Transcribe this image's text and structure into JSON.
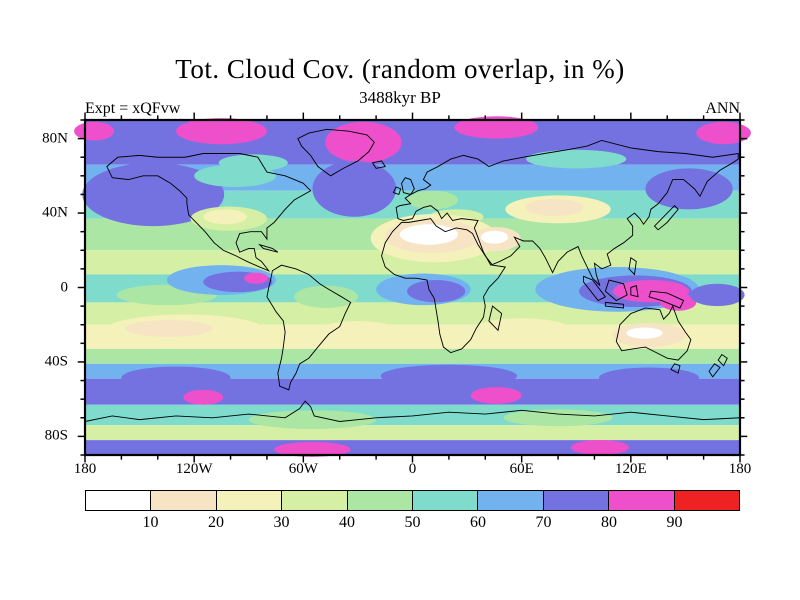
{
  "chart_data": {
    "type": "heatmap",
    "title": "Tot. Cloud Cov. (random overlap, in %)",
    "subtitle": "3488kyr BP",
    "top_left_label": "Expt = xQFvw",
    "top_right_label": "ANN",
    "x_axis": {
      "tick_labels": [
        "180",
        "120W",
        "60W",
        "0",
        "60E",
        "120E",
        "180"
      ],
      "range_deg_lon": [
        -180,
        180
      ]
    },
    "y_axis": {
      "tick_labels": [
        "80N",
        "40N",
        "0",
        "40S",
        "80S"
      ],
      "range_deg_lat": [
        90,
        -90
      ]
    },
    "colorbar": {
      "boundary_labels": [
        "10",
        "20",
        "30",
        "40",
        "50",
        "60",
        "70",
        "80",
        "90"
      ],
      "colors": [
        "#ffffff",
        "#f6e4c4",
        "#f4f1bb",
        "#d5efa5",
        "#abe6a5",
        "#7fdccc",
        "#72b2ee",
        "#7472e0",
        "#ee50cc",
        "#ee2222"
      ],
      "value_range": [
        0,
        100
      ],
      "interval": 10,
      "units": "%"
    },
    "legend_position": "bottom",
    "grid": false,
    "approx_zonal_profile": [
      {
        "lat_band": "90N-70N",
        "cloud_pct": 75
      },
      {
        "lat_band": "70N-55N",
        "cloud_pct": 65
      },
      {
        "lat_band": "55N-35N",
        "cloud_pct": 50
      },
      {
        "lat_band": "35N-20N",
        "cloud_pct": 30
      },
      {
        "lat_band": "20N-5N",
        "cloud_pct": 45
      },
      {
        "lat_band": "5N-5S",
        "cloud_pct": 60
      },
      {
        "lat_band": "5S-20S",
        "cloud_pct": 40
      },
      {
        "lat_band": "20S-35S",
        "cloud_pct": 25
      },
      {
        "lat_band": "35S-50S",
        "cloud_pct": 60
      },
      {
        "lat_band": "50S-65S",
        "cloud_pct": 75
      },
      {
        "lat_band": "65S-75S",
        "cloud_pct": 55
      },
      {
        "lat_band": "75S-90S",
        "cloud_pct": 45
      }
    ],
    "notable_regions": [
      {
        "region": "Sahara and Arabia",
        "cloud_pct": "<10-20"
      },
      {
        "region": "Maritime Continent / eastern Indian Ocean",
        "cloud_pct": "80-90"
      },
      {
        "region": "Arctic patches",
        "cloud_pct": "80-90"
      },
      {
        "region": "Southern Ocean band 45S-65S",
        "cloud_pct": "70-80"
      },
      {
        "region": "Subtropical South Pacific and Australian interior",
        "cloud_pct": "10-20"
      },
      {
        "region": "Equatorial East Pacific / Congo convection blobs",
        "cloud_pct": "70-90"
      }
    ]
  }
}
